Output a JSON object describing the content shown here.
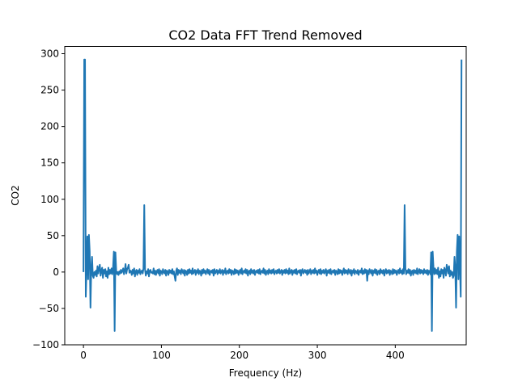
{
  "chart_data": {
    "type": "line",
    "title": "CO2 Data FFT Trend Removed",
    "xlabel": "Frequency (Hz)",
    "ylabel": "CO2",
    "xlim": [
      -24,
      491
    ],
    "ylim": [
      -100,
      310
    ],
    "xticks": [
      0,
      100,
      200,
      300,
      400
    ],
    "yticks": [
      -100,
      -50,
      0,
      50,
      100,
      150,
      200,
      250,
      300
    ],
    "grid": false,
    "series_color": "#1f77b4",
    "series": [
      {
        "values": [
          0,
          292,
          292,
          -34,
          5,
          49,
          -10,
          51,
          28,
          -49,
          5,
          21,
          -5,
          -8,
          0,
          -4,
          2,
          -6,
          8,
          -2,
          5,
          10,
          -5,
          2,
          6,
          -8,
          3,
          -2,
          4,
          -6,
          1,
          -8,
          6,
          -3,
          3,
          -2,
          5,
          -3,
          7,
          28,
          -81,
          27,
          2,
          -3,
          0,
          -4,
          1,
          -2,
          3,
          -1,
          2,
          5,
          -3,
          2,
          11,
          -2,
          4,
          6,
          10,
          -1,
          2,
          1,
          -4,
          3,
          -2,
          5,
          -6,
          1,
          3,
          -4,
          2,
          -1,
          4,
          -3,
          1,
          2,
          -2,
          5,
          92,
          3,
          -5,
          1,
          -2,
          4,
          -6,
          2,
          3,
          -1,
          0,
          -2,
          5,
          -3,
          2,
          -4,
          1,
          3,
          -2,
          4,
          -5,
          2,
          1,
          -3,
          4,
          0,
          -2,
          3,
          -5,
          2,
          1,
          -4,
          3,
          -1,
          2,
          -2,
          4,
          -3,
          1,
          -6,
          -12,
          2,
          5,
          -4,
          3,
          -1,
          2,
          -3,
          4,
          1,
          -2,
          3,
          -5,
          2,
          1,
          -4,
          3,
          -2,
          4,
          -1,
          2,
          -3,
          5,
          -2,
          1,
          3,
          -4,
          2,
          -1,
          4,
          -3,
          2,
          1,
          -5,
          3,
          -2,
          4,
          -1,
          2,
          -3,
          1,
          4,
          -2,
          3,
          -4,
          1,
          2,
          -1,
          3,
          -5,
          4,
          -2,
          1,
          3,
          -3,
          2,
          -1,
          4,
          -2,
          1,
          3,
          -4,
          2,
          -1,
          5,
          -3,
          1,
          2,
          -2,
          4,
          -1,
          3,
          -4,
          2,
          1,
          -3,
          4,
          -2,
          3,
          -1,
          2,
          -4,
          1,
          3,
          -2,
          5,
          -3,
          1,
          2,
          -1,
          4,
          -2,
          3,
          -5,
          1,
          2,
          -3,
          4,
          -1,
          2,
          -2,
          3,
          -4,
          1,
          2,
          -1,
          3,
          -2,
          4,
          -3,
          1,
          2,
          -1,
          5,
          -2,
          3,
          -4,
          1,
          2,
          -3,
          4,
          -1,
          2,
          -2,
          3,
          -1,
          4,
          -3,
          1,
          2,
          -2,
          3,
          -1,
          4,
          -2,
          1,
          3,
          -4,
          2,
          -1,
          3,
          -2,
          4,
          -1,
          2,
          -3,
          5,
          -2,
          1,
          3,
          -4,
          2,
          -1,
          3,
          -2,
          4,
          -3,
          1,
          2,
          -1,
          3,
          -5,
          2,
          4,
          -2,
          1,
          3,
          -1,
          2,
          -4,
          3,
          -2,
          1,
          4,
          -3,
          2,
          -1,
          3,
          -2,
          5,
          -1,
          2,
          -4,
          1,
          3,
          -2,
          4,
          -3,
          2,
          -1,
          3,
          -2,
          1,
          4,
          -5,
          2,
          -1,
          3,
          -2,
          4,
          -3,
          1,
          2,
          -1,
          3,
          -4,
          2,
          1,
          -3,
          4,
          -2,
          3,
          -1,
          2,
          -4,
          1,
          5,
          -2,
          3,
          -1,
          2,
          -3,
          4,
          1,
          -2,
          3,
          -5,
          2,
          -1,
          4,
          -3,
          2,
          1,
          -2,
          3,
          -4,
          1,
          2,
          -1,
          5,
          -3,
          2,
          -2,
          4,
          -1,
          3,
          -12,
          2,
          -3,
          4,
          1,
          -2,
          3,
          -5,
          2,
          -1,
          4,
          -2,
          3,
          -4,
          1,
          2,
          -3,
          4,
          -1,
          2,
          -2,
          3,
          -5,
          1,
          4,
          -2,
          2,
          -1,
          3,
          -4,
          2,
          1,
          -3,
          4,
          -2,
          3,
          -1,
          2,
          -4,
          1,
          3,
          -2,
          5,
          -1,
          2,
          -3,
          4,
          -2,
          92,
          5,
          -3,
          2,
          -1,
          4,
          -2,
          3,
          -5,
          1,
          2,
          -4,
          3,
          -1,
          2,
          -2,
          5,
          -3,
          1,
          4,
          -2,
          3,
          -1,
          2,
          -3,
          4,
          -1,
          2,
          -2,
          3,
          -4,
          2,
          1,
          -3,
          27,
          -81,
          28,
          7,
          -3,
          5,
          -2,
          3,
          -3,
          6,
          -8,
          1,
          -6,
          4,
          -2,
          3,
          -8,
          6,
          2,
          -5,
          10,
          5,
          -2,
          8,
          -6,
          2,
          -4,
          0,
          -8,
          -5,
          21,
          5,
          -49,
          28,
          51,
          -10,
          49,
          5,
          -34,
          292
        ]
      }
    ]
  }
}
